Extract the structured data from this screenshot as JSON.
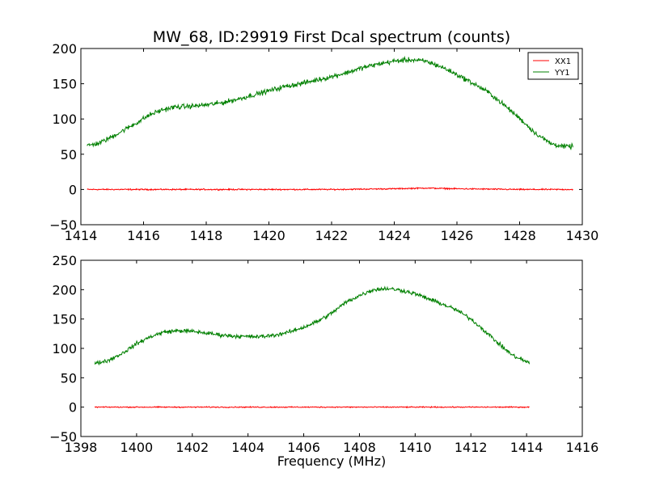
{
  "figure": {
    "title": "MW_68, ID:29919 First Dcal spectrum (counts)",
    "xlabel": "Frequency (MHz)"
  },
  "colors": {
    "XX1": "#ff0000",
    "YY1": "#008000",
    "axes": "#000000",
    "background": "#ffffff"
  },
  "chart_data": [
    {
      "type": "line",
      "title": "MW_68, ID:29919 First Dcal spectrum (counts)",
      "xlabel": "",
      "ylabel": "",
      "xlim": [
        1414,
        1430
      ],
      "ylim": [
        -50,
        200
      ],
      "xticks": [
        1414,
        1416,
        1418,
        1420,
        1422,
        1424,
        1426,
        1428,
        1430
      ],
      "yticks": [
        -50,
        0,
        50,
        100,
        150,
        200
      ],
      "grid": false,
      "legend": {
        "placement": "top-right",
        "entries": [
          "XX1",
          "YY1"
        ]
      },
      "series": [
        {
          "name": "XX1",
          "color": "#ff0000",
          "x": [
            1414.2,
            1417,
            1420,
            1422,
            1424,
            1425,
            1426,
            1428,
            1429.7
          ],
          "y": [
            0,
            0,
            0,
            0,
            1,
            2,
            1,
            0,
            0
          ]
        },
        {
          "name": "YY1",
          "color": "#008000",
          "x": [
            1414.2,
            1414.6,
            1415.0,
            1415.4,
            1415.8,
            1416.2,
            1416.6,
            1417.0,
            1417.5,
            1418.0,
            1418.5,
            1419.0,
            1419.5,
            1420.0,
            1420.5,
            1421.0,
            1421.5,
            1422.0,
            1422.5,
            1423.0,
            1423.5,
            1424.0,
            1424.5,
            1425.0,
            1425.5,
            1426.0,
            1426.5,
            1427.0,
            1427.5,
            1428.0,
            1428.5,
            1429.0,
            1429.4,
            1429.7
          ],
          "y": [
            62,
            66,
            75,
            85,
            95,
            106,
            113,
            117,
            118,
            120,
            123,
            128,
            134,
            140,
            146,
            150,
            155,
            160,
            166,
            173,
            178,
            182,
            184,
            182,
            174,
            163,
            151,
            138,
            120,
            101,
            80,
            65,
            61,
            61
          ]
        }
      ]
    },
    {
      "type": "line",
      "title": "",
      "xlabel": "Frequency (MHz)",
      "ylabel": "",
      "xlim": [
        1398,
        1416
      ],
      "ylim": [
        -50,
        250
      ],
      "xticks": [
        1398,
        1400,
        1402,
        1404,
        1406,
        1408,
        1410,
        1412,
        1414,
        1416
      ],
      "yticks": [
        -50,
        0,
        50,
        100,
        150,
        200,
        250
      ],
      "grid": false,
      "legend": null,
      "series": [
        {
          "name": "XX1",
          "color": "#ff0000",
          "x": [
            1398.5,
            1401,
            1404,
            1407,
            1410,
            1412,
            1414.1
          ],
          "y": [
            0,
            0,
            0,
            0,
            0,
            0,
            0
          ]
        },
        {
          "name": "YY1",
          "color": "#008000",
          "x": [
            1398.5,
            1399.0,
            1399.5,
            1400.0,
            1400.5,
            1401.0,
            1401.5,
            1402.0,
            1402.5,
            1403.0,
            1403.5,
            1404.0,
            1404.5,
            1405.0,
            1405.5,
            1406.0,
            1406.5,
            1407.0,
            1407.5,
            1408.0,
            1408.5,
            1409.0,
            1409.5,
            1410.0,
            1410.5,
            1411.0,
            1411.5,
            1412.0,
            1412.5,
            1413.0,
            1413.5,
            1414.1
          ],
          "y": [
            74,
            80,
            92,
            108,
            120,
            128,
            130,
            129,
            126,
            123,
            121,
            120,
            120,
            123,
            128,
            136,
            146,
            160,
            178,
            190,
            200,
            202,
            199,
            193,
            184,
            175,
            165,
            150,
            130,
            108,
            88,
            75
          ]
        }
      ]
    }
  ]
}
